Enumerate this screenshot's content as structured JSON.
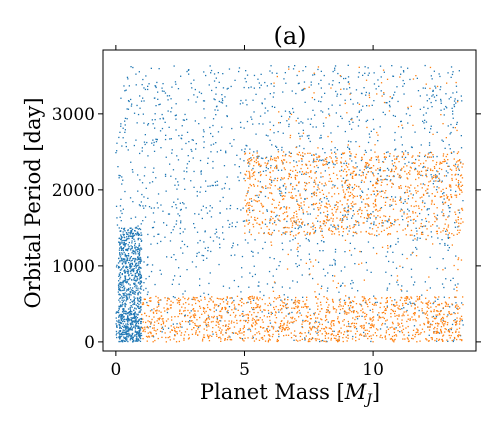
{
  "chart_data": {
    "type": "scatter",
    "title": "(a)",
    "xlabel_text": "Planet Mass [",
    "xlabel_math": "M",
    "xlabel_sub": "J",
    "xlabel_close": "]",
    "ylabel": "Orbital Period [day]",
    "xlim": [
      -0.5,
      14.0
    ],
    "ylim": [
      -120,
      3840
    ],
    "x_ticks": [
      0,
      5,
      10
    ],
    "x_tick_labels": [
      "0",
      "5",
      "10"
    ],
    "y_ticks": [
      0,
      1000,
      2000,
      3000
    ],
    "y_tick_labels": [
      "0",
      "1000",
      "2000",
      "3000"
    ],
    "grid": false,
    "legend": "none",
    "series": [
      {
        "color": "#1f77b4",
        "description_of_distribution": [
          {
            "x_range": [
              0.0,
              13.5
            ],
            "y_range": [
              1500,
              3640
            ],
            "share": 0.45
          },
          {
            "x_range": [
              0.0,
              13.5
            ],
            "y_range": [
              0,
              1500
            ],
            "share": 0.2
          },
          {
            "x_range": [
              0.1,
              1.0
            ],
            "y_range": [
              0,
              1500
            ],
            "share": 0.3
          },
          {
            "x_range": [
              0.0,
              1.0
            ],
            "y_range": [
              0,
              400
            ],
            "share": 0.05
          }
        ]
      },
      {
        "color": "#ff7f0e",
        "description_of_distribution": [
          {
            "x_range": [
              1.0,
              13.5
            ],
            "y_range": [
              0,
              600
            ],
            "share": 0.5
          },
          {
            "x_range": [
              5.0,
              13.5
            ],
            "y_range": [
              1400,
              2500
            ],
            "share": 0.4
          },
          {
            "x_range": [
              6.0,
              13.5
            ],
            "y_range": [
              0,
              3640
            ],
            "share": 0.1
          }
        ]
      }
    ]
  }
}
